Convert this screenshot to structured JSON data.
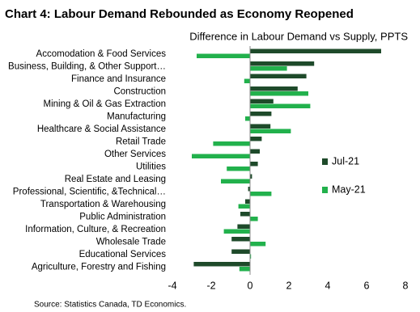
{
  "chart_data": {
    "type": "barh",
    "title": "Chart 4: Labour Demand Rebounded as Economy Reopened",
    "subtitle": "Difference in Labour Demand vs Supply, PPTS",
    "source": "Source: Statistics Canada, TD Economics.",
    "categories": [
      "Accomodation & Food Services",
      "Business, Building, & Other Support…",
      "Finance and Insurance",
      "Construction",
      "Mining & Oil & Gas Extraction",
      "Manufacturing",
      "Healthcare & Social Assistance",
      "Retail Trade",
      "Other Services",
      "Utilities",
      "Real Estate and Leasing",
      "Professional, Scientific, &Technical…",
      "Transportation & Warehousing",
      "Public Administration",
      "Information, Culture, & Recreation",
      "Wholesale Trade",
      "Educational Services",
      "Agriculture, Forestry and Fishing"
    ],
    "series": [
      {
        "name": "Jul-21",
        "color": "#1e4a2a",
        "values": [
          6.75,
          3.3,
          2.9,
          2.45,
          1.2,
          1.1,
          1.05,
          0.6,
          0.5,
          0.4,
          0.1,
          -0.1,
          -0.25,
          -0.5,
          -0.65,
          -0.95,
          -0.95,
          -2.9
        ]
      },
      {
        "name": "May-21",
        "color": "#22b14c",
        "values": [
          -2.75,
          1.9,
          -0.3,
          3.0,
          3.1,
          -0.25,
          2.1,
          -1.9,
          -3.0,
          -1.2,
          -1.5,
          1.1,
          -0.6,
          0.4,
          -1.35,
          0.8,
          0.05,
          -0.55
        ]
      }
    ],
    "xlim": [
      -4,
      8
    ],
    "xticks": [
      -4,
      -2,
      0,
      2,
      4,
      6,
      8
    ]
  }
}
